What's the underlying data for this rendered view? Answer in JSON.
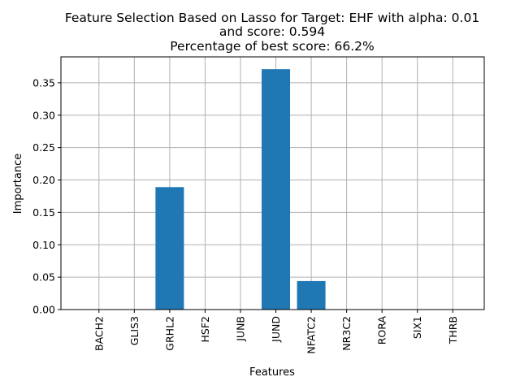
{
  "chart_data": {
    "type": "bar",
    "title_lines": [
      "Feature Selection Based on Lasso for Target: EHF with alpha: 0.01",
      "and score: 0.594",
      "Percentage of best score: 66.2%"
    ],
    "xlabel": "Features",
    "ylabel": "Importance",
    "categories": [
      "BACH2",
      "GLIS3",
      "GRHL2",
      "HSF2",
      "JUNB",
      "JUND",
      "NFATC2",
      "NR3C2",
      "RORA",
      "SIX1",
      "THRB"
    ],
    "values": [
      0,
      0,
      0.189,
      0,
      0,
      0.371,
      0.044,
      0,
      0,
      0,
      0
    ],
    "yticks": [
      0.0,
      0.05,
      0.1,
      0.15,
      0.2,
      0.25,
      0.3,
      0.35
    ],
    "ytick_labels": [
      "0.00",
      "0.05",
      "0.10",
      "0.15",
      "0.20",
      "0.25",
      "0.30",
      "0.35"
    ],
    "ylim": [
      0,
      0.39
    ],
    "grid": true,
    "bar_color": "#1f77b4",
    "grid_color": "#b0b0b0"
  }
}
